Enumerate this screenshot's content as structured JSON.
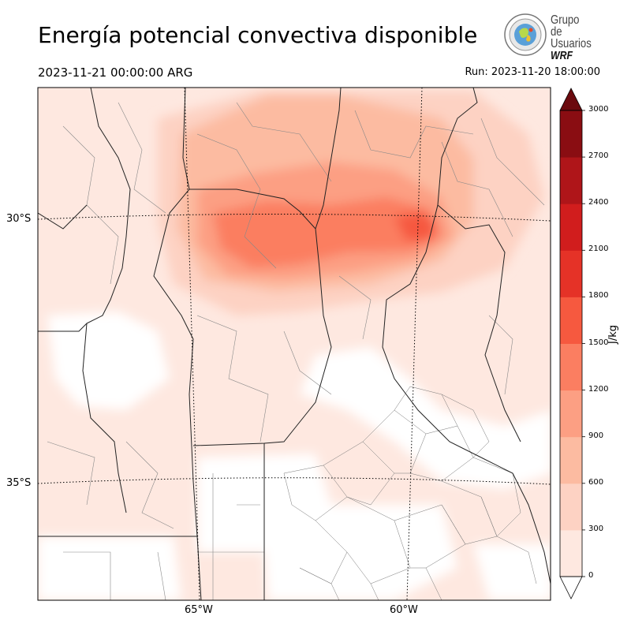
{
  "title": "Energía potencial convectiva disponible",
  "valid_time": "2023-11-21 00:00:00 ARG",
  "run_time": "Run: 2023-11-20 18:00:00",
  "logo": {
    "line1": "Grupo de",
    "line2": "Usuarios",
    "line3": "WRF"
  },
  "map": {
    "lat_labels": [
      "30°S",
      "35°S"
    ],
    "lon_labels": [
      "65°W",
      "60°W"
    ],
    "field": "CAPE"
  },
  "colorbar": {
    "unit": "J/kg",
    "ticks": [
      "0",
      "300",
      "600",
      "900",
      "1200",
      "1500",
      "1800",
      "2100",
      "2400",
      "2700",
      "3000"
    ],
    "colors": [
      "#fee8e0",
      "#fdd2c3",
      "#fcbba1",
      "#fc9f83",
      "#fb7e61",
      "#f6593f",
      "#e53227",
      "#d11d1d",
      "#af1519",
      "#8a0d12",
      "#6b0a0e"
    ]
  }
}
